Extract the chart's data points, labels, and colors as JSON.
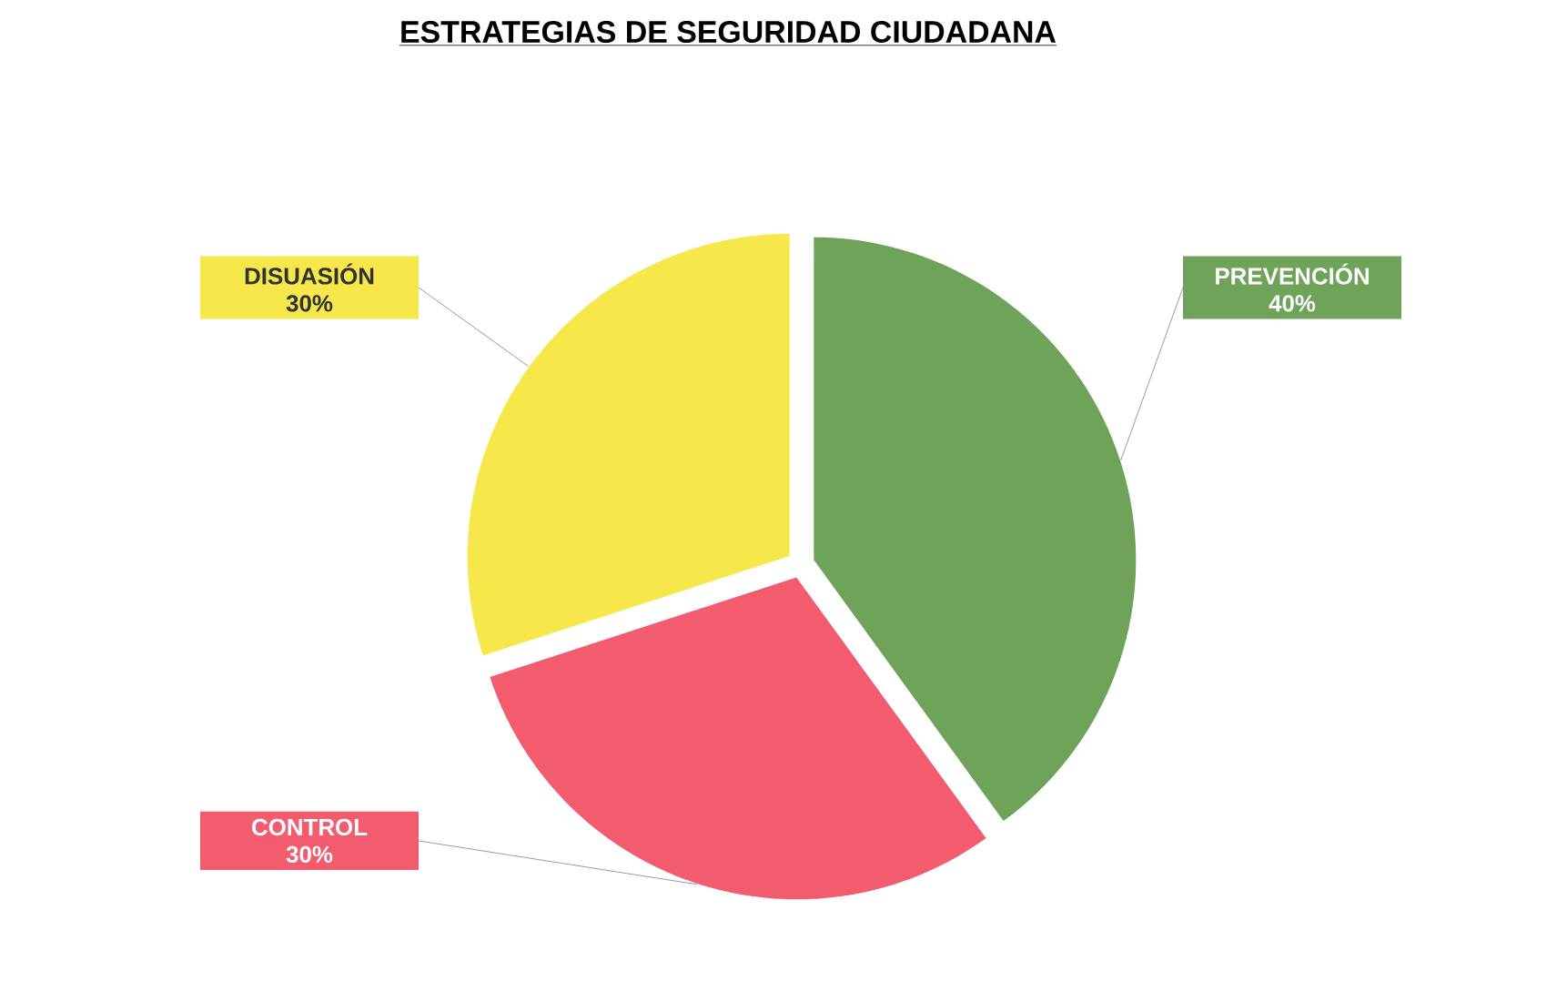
{
  "chart_data": {
    "type": "pie",
    "title": "ESTRATEGIAS DE SEGURIDAD CIUDADANA",
    "categories": [
      "PREVENCIÓN",
      "CONTROL",
      "DISUASIÓN"
    ],
    "values": [
      40,
      30,
      30
    ],
    "colors": [
      "#6fa35a",
      "#f25c6e",
      "#f6e84a"
    ],
    "value_labels": [
      "40%",
      "30%",
      "30%"
    ]
  }
}
